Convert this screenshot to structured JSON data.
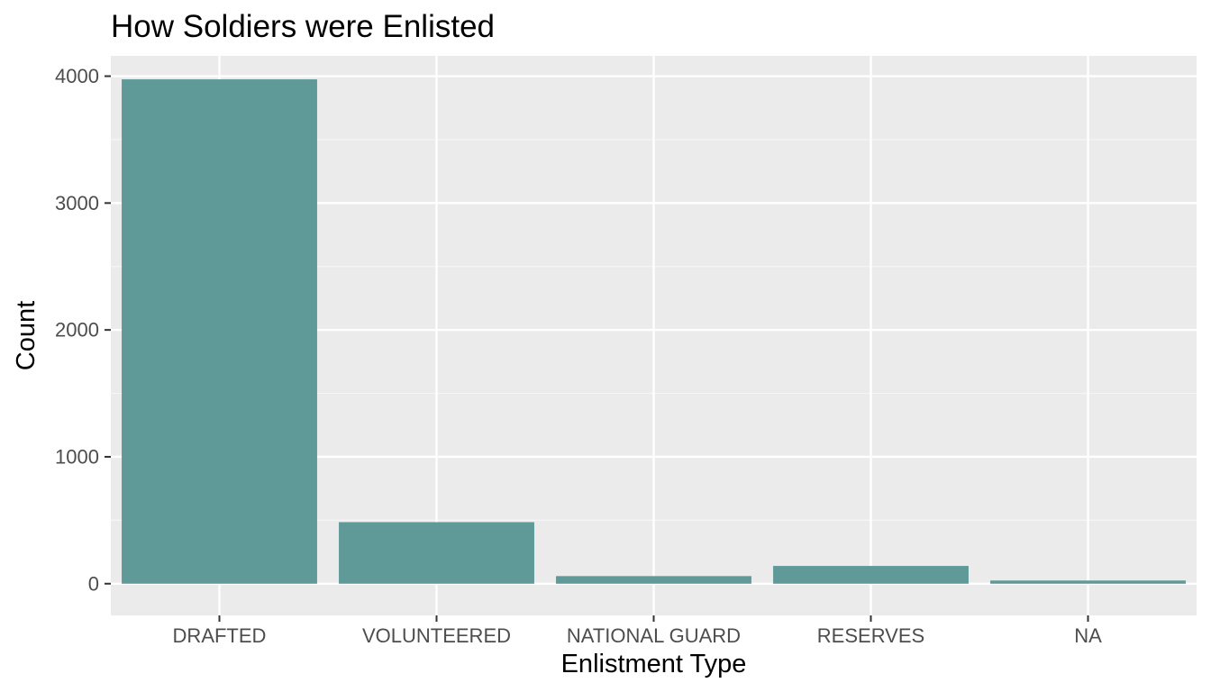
{
  "chart_data": {
    "type": "bar",
    "title": "How Soldiers were Enlisted",
    "xlabel": "Enlistment Type",
    "ylabel": "Count",
    "categories": [
      "DRAFTED",
      "VOLUNTEERED",
      "NATIONAL GUARD",
      "RESERVES",
      "NA"
    ],
    "values": [
      3975,
      485,
      60,
      140,
      25
    ],
    "ylim": [
      -250,
      4160
    ],
    "yticks": [
      0,
      1000,
      2000,
      3000,
      4000
    ],
    "ytick_labels": [
      "0",
      "1000",
      "2000",
      "3000",
      "4000"
    ],
    "grid": true,
    "legend": "none",
    "colors": {
      "bar": "#5f9a99",
      "panel_background": "#ebebeb",
      "grid_major": "#ffffff",
      "grid_minor": "#f5f5f5",
      "tick": "#333333"
    }
  }
}
